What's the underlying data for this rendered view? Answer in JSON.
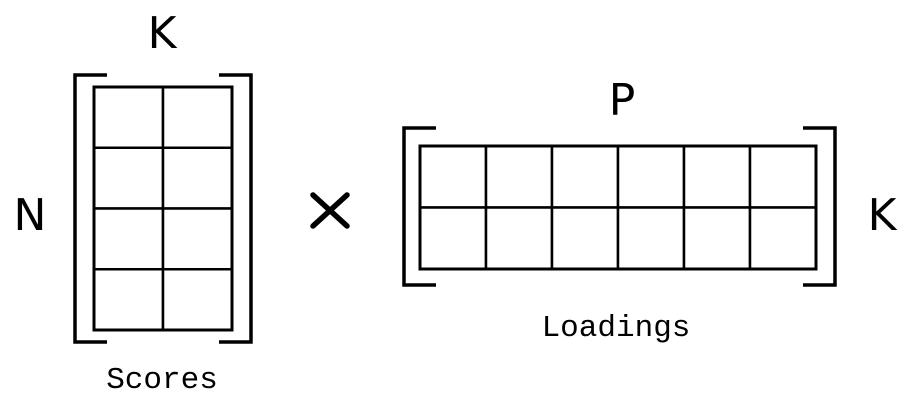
{
  "scores": {
    "rows": 4,
    "cols": 2,
    "row_label": "N",
    "col_label": "K",
    "caption": "Scores"
  },
  "operator": {
    "symbol": "multiply"
  },
  "loadings": {
    "rows": 2,
    "cols": 6,
    "row_label": "K",
    "col_label": "P",
    "caption": "Loadings"
  }
}
